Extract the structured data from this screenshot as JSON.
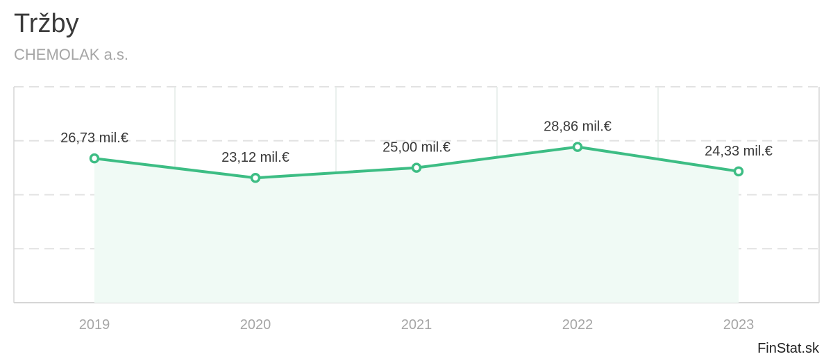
{
  "chart_data": {
    "type": "area",
    "title": "Tržby",
    "subtitle": "CHEMOLAK a.s.",
    "categories": [
      "2019",
      "2020",
      "2021",
      "2022",
      "2023"
    ],
    "series": [
      {
        "values": [
          26.73,
          23.12,
          25.0,
          28.86,
          24.33
        ],
        "labels": [
          "26,73 mil.€",
          "23,12 mil.€",
          "25,00 mil.€",
          "28,86 mil.€",
          "24,33 mil.€"
        ]
      }
    ],
    "ylim": [
      0,
      40
    ],
    "grid": true,
    "legend": "none"
  },
  "colors": {
    "line": "#3dbd84",
    "area": "#f0faf5",
    "grid": "#e2e2e2",
    "vgrid": "#e3ece7",
    "axis": "#d6d6d6"
  },
  "footer": {
    "brand": "FinStat.sk"
  }
}
